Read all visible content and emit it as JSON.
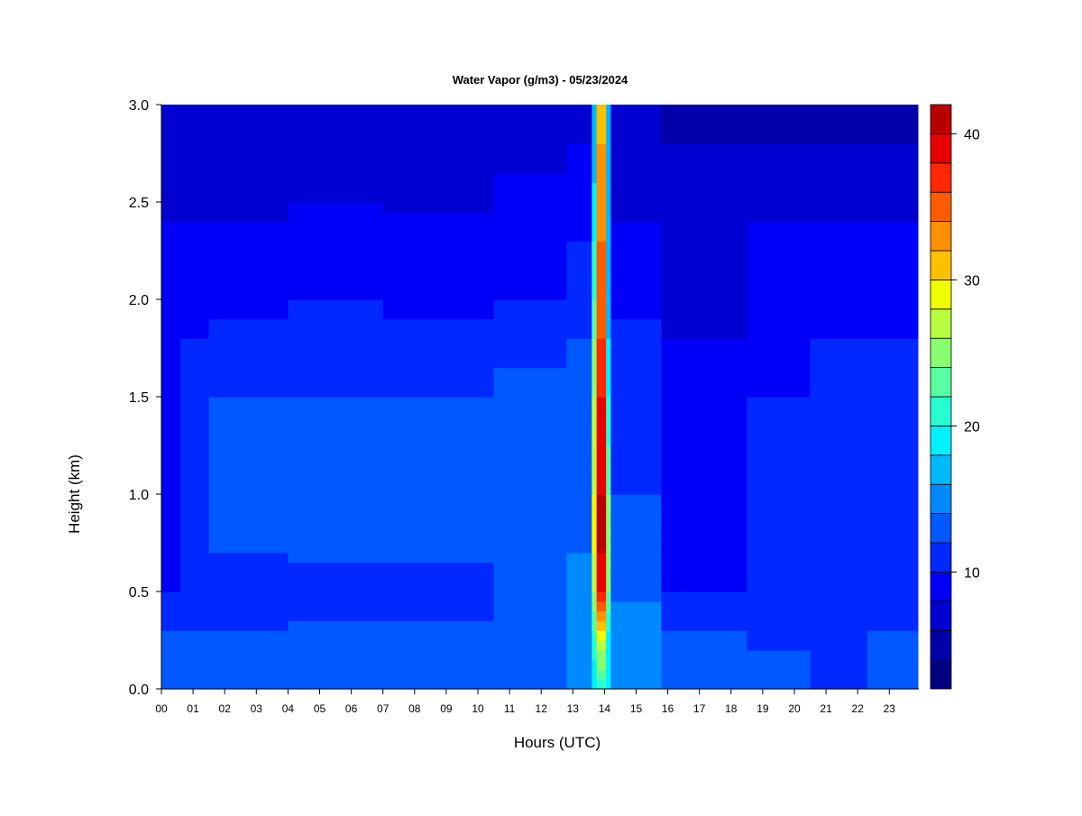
{
  "chart_data": {
    "type": "heatmap",
    "title": "Water Vapor (g/m3) - 05/23/2024",
    "xlabel": "Hours (UTC)",
    "ylabel": "Height (km)",
    "x_ticks": [
      "00",
      "01",
      "02",
      "03",
      "04",
      "05",
      "06",
      "07",
      "08",
      "09",
      "10",
      "11",
      "12",
      "13",
      "14",
      "15",
      "16",
      "17",
      "18",
      "19",
      "20",
      "21",
      "22",
      "23"
    ],
    "xlim": [
      0,
      23.9
    ],
    "y_ticks": [
      "0.0",
      "0.5",
      "1.0",
      "1.5",
      "2.0",
      "2.5",
      "3.0"
    ],
    "ylim": [
      0,
      3.0
    ],
    "colorbar": {
      "range": [
        2,
        42
      ],
      "ticks": [
        {
          "value": 10,
          "label": "10"
        },
        {
          "value": 20,
          "label": "20"
        },
        {
          "value": 30,
          "label": "30"
        },
        {
          "value": 40,
          "label": "40"
        }
      ],
      "levels": [
        2,
        4,
        6,
        8,
        10,
        12,
        14,
        16,
        18,
        20,
        22,
        24,
        26,
        28,
        30,
        32,
        34,
        36,
        38,
        40,
        42
      ],
      "colors": [
        "#000080",
        "#0000a8",
        "#0000d0",
        "#0000f8",
        "#0028ff",
        "#0058ff",
        "#0088ff",
        "#00b8ff",
        "#00f0ff",
        "#28ffd0",
        "#58ffa0",
        "#88ff70",
        "#b8ff40",
        "#f0ff00",
        "#ffc000",
        "#ff9000",
        "#ff5c00",
        "#ff2800",
        "#e80000",
        "#b80000"
      ]
    },
    "profile_heights_km": [
      0.0,
      0.3,
      0.5,
      0.7,
      1.0,
      1.5,
      1.8,
      2.0,
      2.3,
      2.6,
      2.8,
      3.0
    ],
    "profiles": [
      {
        "hours": [
          0,
          0.6
        ],
        "values": [
          13,
          12,
          10,
          9.5,
          9.5,
          9,
          9,
          8.5,
          8.5,
          7,
          7,
          6.5
        ]
      },
      {
        "hours": [
          0.6,
          1.5
        ],
        "values": [
          13,
          12,
          10,
          11.5,
          12,
          11.5,
          10,
          9.5,
          8.5,
          7,
          7,
          6.5
        ]
      },
      {
        "hours": [
          1.5,
          4.0
        ],
        "values": [
          13,
          12,
          10,
          12,
          12.5,
          12,
          10.5,
          9.5,
          8.5,
          7,
          6.5,
          6
        ]
      },
      {
        "hours": [
          4.0,
          7.0
        ],
        "values": [
          13,
          12.5,
          11,
          12.5,
          12.5,
          12,
          11,
          10,
          9,
          7.5,
          7,
          6.5
        ]
      },
      {
        "hours": [
          7.0,
          10.5
        ],
        "values": [
          13,
          12.5,
          11,
          12.5,
          12.5,
          12,
          10.5,
          9.5,
          8.5,
          7.5,
          7,
          6.5
        ]
      },
      {
        "hours": [
          10.5,
          12.8
        ],
        "values": [
          14,
          13.5,
          13,
          13,
          13,
          12.5,
          11.5,
          10,
          9.5,
          8.5,
          7,
          6.5
        ]
      },
      {
        "hours": [
          12.8,
          13.6
        ],
        "values": [
          15.5,
          15,
          14,
          14,
          13.5,
          13,
          12,
          11,
          10,
          9,
          8,
          7
        ]
      },
      {
        "hours": [
          13.6,
          13.75
        ],
        "values": [
          18,
          22,
          26,
          28,
          28,
          26,
          24,
          22,
          20,
          18,
          17,
          16
        ]
      },
      {
        "hours": [
          13.75,
          14.05
        ],
        "values": [
          20,
          30,
          38,
          40,
          40,
          38,
          36,
          35,
          34,
          33,
          32,
          30
        ]
      },
      {
        "hours": [
          14.05,
          14.2
        ],
        "values": [
          18,
          20,
          24,
          26,
          24,
          20,
          18,
          17,
          17,
          17,
          16,
          16
        ]
      },
      {
        "hours": [
          14.2,
          15.8
        ],
        "values": [
          16,
          15,
          13.5,
          12.5,
          12,
          11.5,
          10.5,
          9.5,
          8.5,
          7,
          6.5,
          6
        ]
      },
      {
        "hours": [
          15.8,
          18.5
        ],
        "values": [
          13.5,
          12,
          10,
          9.5,
          9,
          8.5,
          8,
          7.5,
          7,
          6.5,
          6,
          5.5
        ]
      },
      {
        "hours": [
          18.5,
          20.5
        ],
        "values": [
          13,
          11.5,
          10,
          10,
          10,
          10,
          9.5,
          9,
          8.5,
          7,
          6,
          5.5
        ]
      },
      {
        "hours": [
          20.5,
          22.3
        ],
        "values": [
          11,
          11.5,
          10.5,
          10.5,
          11,
          11.5,
          10,
          9,
          8.5,
          7,
          6,
          5
        ]
      },
      {
        "hours": [
          22.3,
          23.9
        ],
        "values": [
          12.5,
          12,
          10.5,
          10.5,
          11,
          11,
          10,
          9,
          8.5,
          7,
          6,
          5
        ]
      }
    ]
  }
}
